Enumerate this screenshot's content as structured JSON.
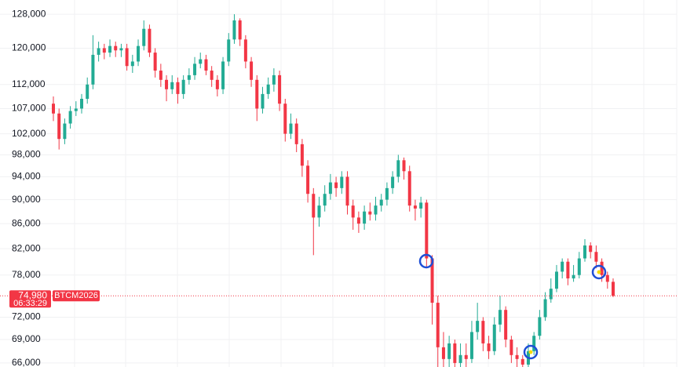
{
  "chart_data": {
    "type": "candlestick",
    "log_scale": true,
    "grid": true,
    "ylim": [
      65500,
      131500
    ],
    "yticks": [
      {
        "value": 66000,
        "label": "66,000"
      },
      {
        "value": 69000,
        "label": "69,000"
      },
      {
        "value": 72000,
        "label": "72,000"
      },
      {
        "value": 78000,
        "label": "78,000"
      },
      {
        "value": 82000,
        "label": "82,000"
      },
      {
        "value": 86000,
        "label": "86,000"
      },
      {
        "value": 90000,
        "label": "90,000"
      },
      {
        "value": 94000,
        "label": "94,000"
      },
      {
        "value": 98000,
        "label": "98,000"
      },
      {
        "value": 102000,
        "label": "102,000"
      },
      {
        "value": 107000,
        "label": "107,000"
      },
      {
        "value": 112000,
        "label": "112,000"
      },
      {
        "value": 120000,
        "label": "120,000"
      },
      {
        "value": 128000,
        "label": "128,000"
      }
    ],
    "up_color": "#22ab94",
    "down_color": "#f23645",
    "symbol": "BTCM2026",
    "last_price": {
      "value": 74980,
      "label": "74,980"
    },
    "countdown": "06:33:29",
    "open": [
      108000,
      106000,
      101000,
      104000,
      106500,
      107000,
      109000,
      112000,
      118500,
      120000,
      119000,
      120500,
      119500,
      120000,
      116000,
      117000,
      120500,
      124500,
      119000,
      115000,
      113000,
      111000,
      112500,
      110000,
      113000,
      114000,
      116500,
      117500,
      115000,
      113000,
      111000,
      117000,
      122000,
      126500,
      122000,
      117000,
      113000,
      107000,
      110000,
      112000,
      114000,
      108000,
      102000,
      104000,
      100000,
      96000,
      91000,
      87000,
      89000,
      91000,
      93000,
      92000,
      94000,
      89000,
      87000,
      86000,
      88000,
      87500,
      89000,
      90000,
      92000,
      94000,
      97000,
      95000,
      89000,
      88500,
      89500,
      80500,
      74000,
      68000,
      66500,
      68500,
      66000,
      67000,
      66500,
      70000,
      71500,
      68500,
      67500,
      71000,
      73000,
      69000,
      67000,
      66500,
      65800,
      67500,
      69500,
      72000,
      74500,
      76000,
      78500,
      80000,
      77500,
      78000,
      80500,
      82500,
      81500,
      80000,
      78000,
      77000
    ],
    "high": [
      109500,
      107000,
      105000,
      107500,
      108500,
      110000,
      113500,
      123000,
      121500,
      121000,
      122000,
      121500,
      121000,
      121000,
      118500,
      122000,
      126500,
      125500,
      120000,
      116500,
      114000,
      114000,
      113500,
      114000,
      115500,
      118000,
      119000,
      118500,
      116000,
      114000,
      118000,
      123500,
      128000,
      127000,
      123000,
      118000,
      114000,
      111500,
      113500,
      115500,
      115000,
      109000,
      106000,
      105000,
      101000,
      97000,
      92000,
      90500,
      92500,
      94500,
      94000,
      95000,
      95000,
      90000,
      88000,
      89000,
      89500,
      90500,
      91000,
      93000,
      95000,
      98000,
      97500,
      96000,
      90000,
      90500,
      90000,
      81000,
      75000,
      70000,
      69500,
      69000,
      68500,
      68500,
      71500,
      74000,
      72000,
      69500,
      72000,
      75000,
      73500,
      69500,
      68000,
      67000,
      68500,
      70000,
      73000,
      75500,
      77500,
      79500,
      80500,
      80500,
      79500,
      81500,
      83500,
      83000,
      82500,
      80500,
      78500,
      77500
    ],
    "low": [
      104500,
      99000,
      100000,
      103000,
      105500,
      106000,
      108000,
      111000,
      117000,
      117500,
      118000,
      118000,
      118000,
      115000,
      114500,
      116000,
      119500,
      118000,
      113500,
      111500,
      108500,
      110000,
      108000,
      109000,
      112000,
      113000,
      115500,
      114000,
      111500,
      109500,
      110000,
      116000,
      121000,
      120500,
      115500,
      111500,
      104500,
      106000,
      109000,
      110500,
      106500,
      100500,
      101000,
      98500,
      94000,
      89500,
      81000,
      85500,
      88000,
      90000,
      90500,
      91000,
      87500,
      85000,
      84500,
      85000,
      86500,
      86500,
      88000,
      89000,
      91000,
      93000,
      93500,
      88000,
      86500,
      87000,
      79000,
      71000,
      64000,
      64000,
      65000,
      64500,
      65000,
      65000,
      66000,
      69000,
      67500,
      66500,
      67000,
      70000,
      68000,
      66000,
      65500,
      65000,
      65300,
      67000,
      69000,
      71500,
      74000,
      75500,
      77500,
      76500,
      77000,
      77500,
      80000,
      80500,
      79000,
      77000,
      76000,
      74800
    ],
    "close": [
      106000,
      101000,
      104000,
      106500,
      107000,
      109000,
      112000,
      118500,
      120000,
      119000,
      120500,
      119500,
      120000,
      116000,
      117000,
      120500,
      124500,
      119000,
      115000,
      113000,
      111000,
      112500,
      110000,
      113000,
      114000,
      116500,
      117500,
      115000,
      113000,
      111000,
      117000,
      122000,
      126500,
      122000,
      117000,
      113000,
      107000,
      110000,
      112000,
      114000,
      108000,
      102000,
      104000,
      100000,
      96000,
      91000,
      87000,
      89000,
      91000,
      93000,
      92000,
      94000,
      89000,
      87000,
      86000,
      88000,
      87500,
      89000,
      90000,
      92000,
      94000,
      97000,
      95000,
      89000,
      88500,
      89500,
      80500,
      74000,
      68000,
      66500,
      68500,
      66000,
      67000,
      66500,
      70000,
      71500,
      68500,
      67500,
      71000,
      73000,
      69000,
      67000,
      66500,
      65800,
      67500,
      69500,
      72000,
      74500,
      76000,
      78500,
      80000,
      77500,
      78000,
      80500,
      82500,
      81500,
      80000,
      78000,
      77000,
      74980
    ]
  }
}
